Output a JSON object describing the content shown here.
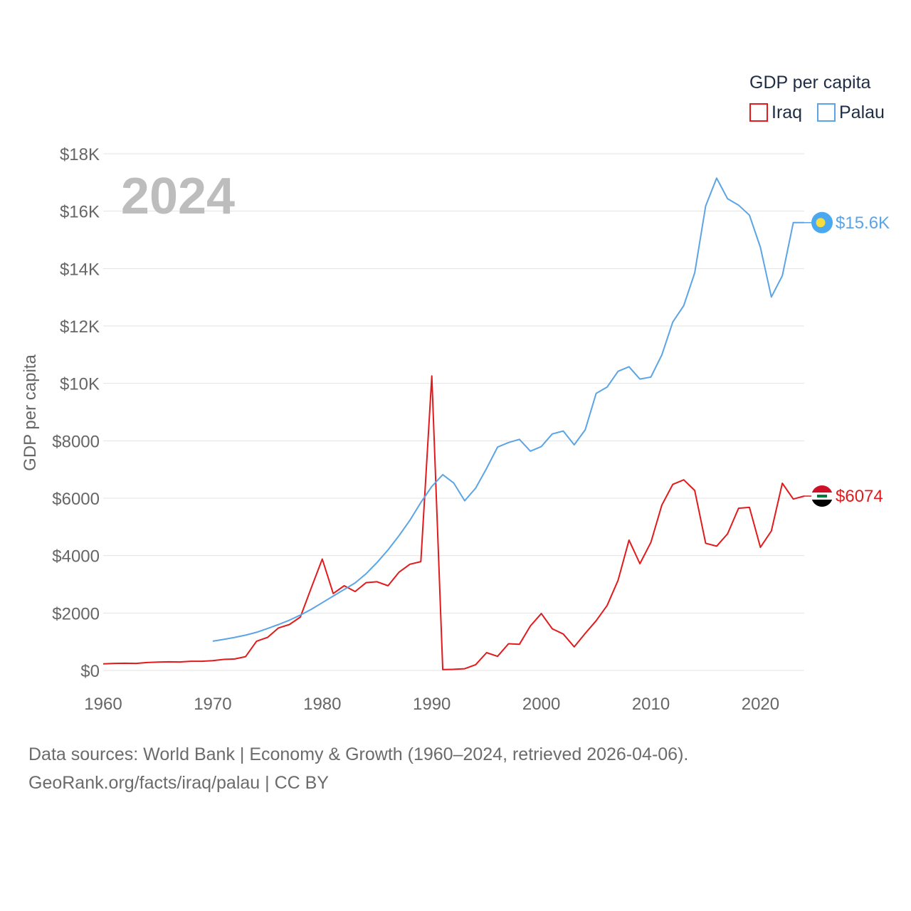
{
  "chart_data": {
    "type": "line",
    "title": "",
    "year_label": "2024",
    "xlabel": "",
    "ylabel": "GDP per capita",
    "xlim": [
      1960,
      2024
    ],
    "ylim": [
      0,
      18000
    ],
    "x_ticks": [
      1960,
      1970,
      1980,
      1990,
      2000,
      2010,
      2020
    ],
    "y_ticks": [
      0,
      2000,
      4000,
      6000,
      8000,
      10000,
      12000,
      14000,
      16000,
      18000
    ],
    "y_tick_labels": [
      "$0",
      "$2000",
      "$4000",
      "$6000",
      "$8000",
      "$10K",
      "$12K",
      "$14K",
      "$16K",
      "$18K"
    ],
    "legend": {
      "title": "GDP per capita",
      "position": "top-right"
    },
    "series": [
      {
        "name": "Iraq",
        "color": "#e31a1c",
        "end_label": "$6074",
        "flag": "iraq-flag",
        "x": [
          1960,
          1961,
          1962,
          1963,
          1964,
          1965,
          1966,
          1967,
          1968,
          1969,
          1970,
          1971,
          1972,
          1973,
          1974,
          1975,
          1976,
          1977,
          1978,
          1979,
          1980,
          1981,
          1982,
          1983,
          1984,
          1985,
          1986,
          1987,
          1988,
          1989,
          1990,
          1991,
          1992,
          1993,
          1994,
          1995,
          1996,
          1997,
          1998,
          1999,
          2000,
          2001,
          2002,
          2003,
          2004,
          2005,
          2006,
          2007,
          2008,
          2009,
          2010,
          2011,
          2012,
          2013,
          2014,
          2015,
          2016,
          2017,
          2018,
          2019,
          2020,
          2021,
          2022,
          2023,
          2024
        ],
        "values": [
          230,
          245,
          250,
          245,
          275,
          290,
          300,
          295,
          320,
          320,
          340,
          385,
          400,
          480,
          1020,
          1150,
          1480,
          1600,
          1860,
          2880,
          3880,
          2680,
          2950,
          2750,
          3060,
          3090,
          2950,
          3420,
          3700,
          3790,
          10260,
          30,
          40,
          60,
          200,
          620,
          490,
          930,
          910,
          1550,
          1980,
          1450,
          1270,
          820,
          1290,
          1730,
          2260,
          3140,
          4540,
          3720,
          4460,
          5760,
          6480,
          6640,
          6270,
          4430,
          4330,
          4760,
          5650,
          5680,
          4290,
          4860,
          6520,
          5970,
          6074
        ]
      },
      {
        "name": "Palau",
        "color": "#5ba4e5",
        "end_label": "$15.6K",
        "flag": "palau-flag",
        "x": [
          1970,
          1971,
          1972,
          1973,
          1974,
          1975,
          1976,
          1977,
          1978,
          1979,
          1980,
          1981,
          1982,
          1983,
          1984,
          1985,
          1986,
          1987,
          1988,
          1989,
          1990,
          1991,
          1992,
          1993,
          1994,
          1995,
          1996,
          1997,
          1998,
          1999,
          2000,
          2001,
          2002,
          2003,
          2004,
          2005,
          2006,
          2007,
          2008,
          2009,
          2010,
          2011,
          2012,
          2013,
          2014,
          2015,
          2016,
          2017,
          2018,
          2019,
          2020,
          2021,
          2022,
          2023,
          2024
        ],
        "values": [
          1020,
          1080,
          1150,
          1230,
          1330,
          1460,
          1600,
          1750,
          1930,
          2130,
          2360,
          2590,
          2820,
          3050,
          3370,
          3760,
          4200,
          4690,
          5230,
          5850,
          6410,
          6820,
          6530,
          5910,
          6350,
          7040,
          7780,
          7940,
          8050,
          7640,
          7800,
          8240,
          8340,
          7860,
          8380,
          9650,
          9870,
          10420,
          10580,
          10150,
          10220,
          10990,
          12140,
          12710,
          13850,
          16180,
          17150,
          16430,
          16210,
          15860,
          14740,
          13010,
          13750,
          15600,
          15600
        ]
      }
    ]
  },
  "footer": {
    "sources": "Data sources: World Bank | Economy & Growth (1960–2024, retrieved 2026-04-06).",
    "credit": "GeoRank.org/facts/iraq/palau | CC BY"
  }
}
